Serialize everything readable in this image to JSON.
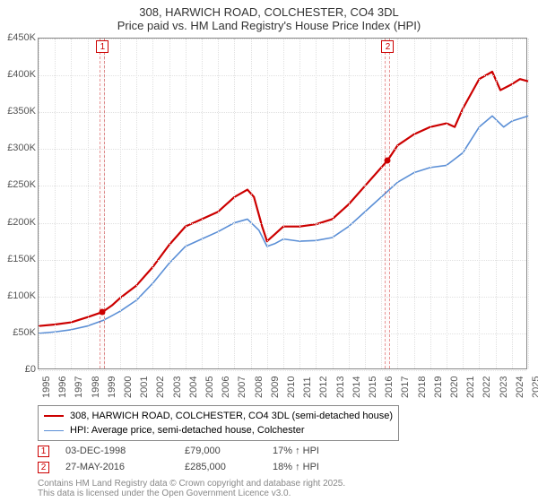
{
  "title": {
    "line1": "308, HARWICH ROAD, COLCHESTER, CO4 3DL",
    "line2": "Price paid vs. HM Land Registry's House Price Index (HPI)",
    "fontsize": 13,
    "color": "#333333"
  },
  "chart": {
    "type": "line",
    "background_color": "#ffffff",
    "border_color": "#888888",
    "grid_color": "#e0e0e0",
    "x": {
      "min": 1995,
      "max": 2025,
      "ticks": [
        1995,
        1996,
        1997,
        1998,
        1999,
        2000,
        2001,
        2002,
        2003,
        2004,
        2005,
        2006,
        2007,
        2008,
        2009,
        2010,
        2011,
        2012,
        2013,
        2014,
        2015,
        2016,
        2017,
        2018,
        2019,
        2020,
        2021,
        2022,
        2023,
        2024,
        2025
      ],
      "label_fontsize": 11,
      "label_color": "#555555"
    },
    "y": {
      "min": 0,
      "max": 450000,
      "ticks": [
        0,
        50000,
        100000,
        150000,
        200000,
        250000,
        300000,
        350000,
        400000,
        450000
      ],
      "tick_labels": [
        "£0",
        "£50K",
        "£100K",
        "£150K",
        "£200K",
        "£250K",
        "£300K",
        "£350K",
        "£400K",
        "£450K"
      ],
      "label_fontsize": 11,
      "label_color": "#555555"
    },
    "series": [
      {
        "id": "property",
        "label": "308, HARWICH ROAD, COLCHESTER, CO4 3DL (semi-detached house)",
        "color": "#cc0000",
        "width": 2.2,
        "data": [
          [
            1995,
            60000
          ],
          [
            1996,
            62000
          ],
          [
            1997,
            65000
          ],
          [
            1998,
            72000
          ],
          [
            1998.92,
            79000
          ],
          [
            1999.5,
            88000
          ],
          [
            2000,
            98000
          ],
          [
            2001,
            115000
          ],
          [
            2002,
            140000
          ],
          [
            2003,
            170000
          ],
          [
            2004,
            195000
          ],
          [
            2005,
            205000
          ],
          [
            2006,
            215000
          ],
          [
            2007,
            235000
          ],
          [
            2007.8,
            245000
          ],
          [
            2008.2,
            235000
          ],
          [
            2008.7,
            195000
          ],
          [
            2009,
            175000
          ],
          [
            2009.5,
            185000
          ],
          [
            2010,
            195000
          ],
          [
            2011,
            195000
          ],
          [
            2012,
            198000
          ],
          [
            2013,
            205000
          ],
          [
            2014,
            225000
          ],
          [
            2015,
            250000
          ],
          [
            2016,
            275000
          ],
          [
            2016.4,
            285000
          ],
          [
            2017,
            305000
          ],
          [
            2018,
            320000
          ],
          [
            2019,
            330000
          ],
          [
            2020,
            335000
          ],
          [
            2020.5,
            330000
          ],
          [
            2021,
            355000
          ],
          [
            2022,
            395000
          ],
          [
            2022.8,
            405000
          ],
          [
            2023.3,
            380000
          ],
          [
            2024,
            388000
          ],
          [
            2024.5,
            395000
          ],
          [
            2025,
            392000
          ]
        ]
      },
      {
        "id": "hpi",
        "label": "HPI: Average price, semi-detached house, Colchester",
        "color": "#5b8fd6",
        "width": 1.6,
        "data": [
          [
            1995,
            50000
          ],
          [
            1996,
            52000
          ],
          [
            1997,
            55000
          ],
          [
            1998,
            60000
          ],
          [
            1999,
            68000
          ],
          [
            2000,
            80000
          ],
          [
            2001,
            95000
          ],
          [
            2002,
            118000
          ],
          [
            2003,
            145000
          ],
          [
            2004,
            168000
          ],
          [
            2005,
            178000
          ],
          [
            2006,
            188000
          ],
          [
            2007,
            200000
          ],
          [
            2007.8,
            205000
          ],
          [
            2008.5,
            190000
          ],
          [
            2009,
            168000
          ],
          [
            2009.5,
            172000
          ],
          [
            2010,
            178000
          ],
          [
            2011,
            175000
          ],
          [
            2012,
            176000
          ],
          [
            2013,
            180000
          ],
          [
            2014,
            195000
          ],
          [
            2015,
            215000
          ],
          [
            2016,
            235000
          ],
          [
            2017,
            255000
          ],
          [
            2018,
            268000
          ],
          [
            2019,
            275000
          ],
          [
            2020,
            278000
          ],
          [
            2021,
            295000
          ],
          [
            2022,
            330000
          ],
          [
            2022.8,
            345000
          ],
          [
            2023.5,
            330000
          ],
          [
            2024,
            338000
          ],
          [
            2025,
            345000
          ]
        ]
      }
    ],
    "markers": [
      {
        "n": "1",
        "x": 1998.92,
        "y": 79000,
        "box_color": "#cc0000",
        "point_color": "#cc0000"
      },
      {
        "n": "2",
        "x": 2016.4,
        "y": 285000,
        "box_color": "#cc0000",
        "point_color": "#cc0000"
      }
    ]
  },
  "legend": {
    "border_color": "#888888",
    "fontsize": 11
  },
  "transactions": [
    {
      "n": "1",
      "date": "03-DEC-1998",
      "price": "£79,000",
      "delta": "17% ↑ HPI",
      "box_color": "#cc0000"
    },
    {
      "n": "2",
      "date": "27-MAY-2016",
      "price": "£285,000",
      "delta": "18% ↑ HPI",
      "box_color": "#cc0000"
    }
  ],
  "credit": {
    "line1": "Contains HM Land Registry data © Crown copyright and database right 2025.",
    "line2": "This data is licensed under the Open Government Licence v3.0.",
    "color": "#888888",
    "fontsize": 10
  }
}
